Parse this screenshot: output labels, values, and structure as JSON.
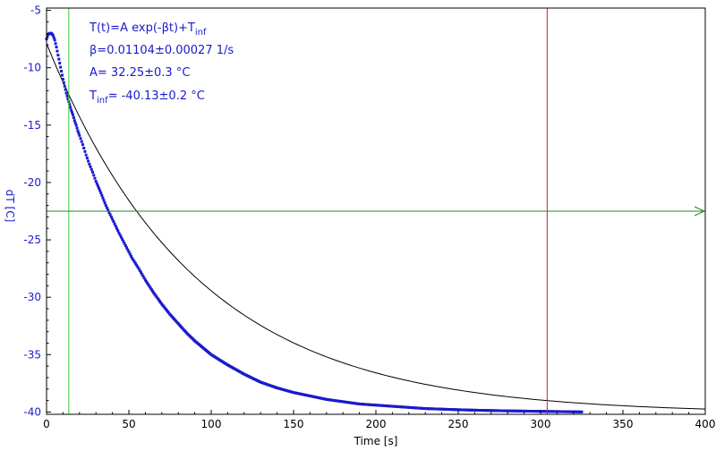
{
  "chart_data": {
    "type": "scatter",
    "xlabel": "Time [s]",
    "ylabel": "dT [C]",
    "xlim": [
      0,
      400
    ],
    "ylim": [
      -40.2,
      -4.8
    ],
    "x_ticks": [
      0,
      50,
      100,
      150,
      200,
      250,
      300,
      350,
      400
    ],
    "y_ticks": [
      -5,
      -10,
      -15,
      -20,
      -25,
      -30,
      -35,
      -40
    ],
    "grid": false,
    "colors": {
      "data": "#1a1acc",
      "fit": "#000000",
      "axis_text": "#1a1acc",
      "green_marker": "#33cc33",
      "red_marker": "#cc2222",
      "hline": "#228822"
    },
    "fit_params": {
      "A": 32.25,
      "beta": 0.01104,
      "T_inf": -40.13
    },
    "series": [
      {
        "x": [
          0,
          1,
          2,
          3,
          4,
          5,
          6,
          7,
          8,
          9,
          10,
          11,
          12,
          13,
          14,
          15,
          16,
          17,
          18,
          19,
          20,
          22,
          24,
          26,
          28,
          30,
          33,
          36,
          40,
          44,
          48,
          52,
          56,
          60,
          65,
          70,
          75,
          80,
          85,
          90,
          95,
          100,
          110,
          120,
          130,
          140,
          150,
          160,
          170,
          180,
          190,
          200,
          210,
          220,
          230,
          240,
          250,
          260,
          270,
          280,
          290,
          300,
          310,
          320,
          325
        ],
        "y": [
          -7.5,
          -7.1,
          -7.0,
          -7.0,
          -7.2,
          -7.6,
          -8.2,
          -8.9,
          -9.6,
          -10.3,
          -11.0,
          -11.6,
          -12.2,
          -12.7,
          -13.2,
          -13.7,
          -14.1,
          -14.6,
          -15.0,
          -15.5,
          -15.9,
          -16.7,
          -17.6,
          -18.4,
          -19.1,
          -19.9,
          -20.9,
          -22.0,
          -23.2,
          -24.4,
          -25.5,
          -26.6,
          -27.5,
          -28.5,
          -29.6,
          -30.6,
          -31.5,
          -32.3,
          -33.1,
          -33.8,
          -34.4,
          -35.0,
          -35.9,
          -36.7,
          -37.4,
          -37.9,
          -38.3,
          -38.6,
          -38.9,
          -39.1,
          -39.3,
          -39.4,
          -39.5,
          -39.6,
          -39.7,
          -39.75,
          -39.8,
          -39.84,
          -39.87,
          -39.9,
          -39.92,
          -39.94,
          -39.96,
          -39.98,
          -39.99
        ]
      }
    ],
    "markers": {
      "green_x": 13.5,
      "red_x": 304,
      "hline_y": -22.5
    },
    "annotations": {
      "formula_main": "T(t)=A exp(-βt)+T",
      "formula_sub": "inf",
      "beta_line": "β=0.01104±0.00027 1/s",
      "a_line": "A= 32.25±0.3 °C",
      "tinf_prefix": "T",
      "tinf_sub": "inf",
      "tinf_rest": "= -40.13±0.2 °C"
    }
  }
}
